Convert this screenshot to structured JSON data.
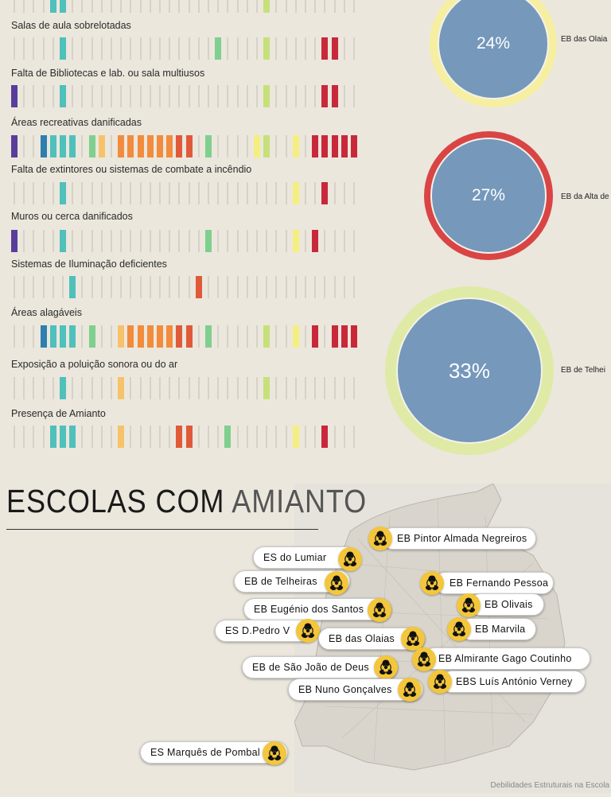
{
  "rows": [
    {
      "label": "",
      "colors": [
        "",
        "",
        "",
        "",
        "#4fc0bb",
        "#4fc0bb",
        "",
        "",
        "",
        "",
        "",
        "",
        "",
        "",
        "",
        "",
        "",
        "",
        "",
        "",
        "",
        "",
        "",
        "",
        "",
        "",
        "#c7e07a",
        "",
        "",
        "",
        "",
        "",
        "",
        "",
        "",
        ""
      ]
    },
    {
      "label": "Salas de aula sobrelotadas",
      "colors": [
        "",
        "",
        "",
        "",
        "",
        "#4fc0bb",
        "",
        "",
        "",
        "",
        "",
        "",
        "",
        "",
        "",
        "",
        "",
        "",
        "",
        "",
        "",
        "#7fcf8e",
        "",
        "",
        "",
        "",
        "#c7e07a",
        "",
        "",
        "",
        "",
        "",
        "#c8283a",
        "#c8283a",
        "",
        ""
      ]
    },
    {
      "label": "Falta de Bibliotecas e lab. ou sala multiusos",
      "colors": [
        "#5a3d9a",
        "",
        "",
        "",
        "",
        "#4fc0bb",
        "",
        "",
        "",
        "",
        "",
        "",
        "",
        "",
        "",
        "",
        "",
        "",
        "",
        "",
        "",
        "",
        "",
        "",
        "",
        "",
        "#c7e07a",
        "",
        "",
        "",
        "",
        "",
        "#c8283a",
        "#c8283a",
        "",
        ""
      ]
    },
    {
      "label": "Áreas recreativas danificadas",
      "colors": [
        "#5a3d9a",
        "",
        "",
        "#2e7fae",
        "#4fc0bb",
        "#4fc0bb",
        "#4fc0bb",
        "",
        "#7fcf8e",
        "#f6c36a",
        "",
        "#f28c3c",
        "#f28c3c",
        "#f28c3c",
        "#f28c3c",
        "#f28c3c",
        "#f28c3c",
        "#e05a3a",
        "#e05a3a",
        "",
        "#7fcf8e",
        "",
        "",
        "",
        "",
        "#f4ef80",
        "#c7e07a",
        "",
        "",
        "#f4ef80",
        "",
        "#c8283a",
        "#c8283a",
        "#c8283a",
        "#c8283a",
        "#c8283a"
      ]
    },
    {
      "label": "Falta de extintores ou sistemas de combate a incêndio",
      "colors": [
        "",
        "",
        "",
        "",
        "",
        "#4fc0bb",
        "",
        "",
        "",
        "",
        "",
        "",
        "",
        "",
        "",
        "",
        "",
        "",
        "",
        "",
        "",
        "",
        "",
        "",
        "",
        "",
        "",
        "",
        "",
        "#f4ef80",
        "",
        "",
        "#c8283a",
        "",
        "",
        ""
      ]
    },
    {
      "label": "Muros ou cerca danificados",
      "colors": [
        "#5a3d9a",
        "",
        "",
        "",
        "",
        "#4fc0bb",
        "",
        "",
        "",
        "",
        "",
        "",
        "",
        "",
        "",
        "",
        "",
        "",
        "",
        "",
        "#7fcf8e",
        "",
        "",
        "",
        "",
        "",
        "",
        "",
        "",
        "#f4ef80",
        "",
        "#c8283a",
        "",
        "",
        "",
        ""
      ]
    },
    {
      "label": "Sistemas de Iluminação deficientes",
      "colors": [
        "",
        "",
        "",
        "",
        "",
        "",
        "#4fc0bb",
        "",
        "",
        "",
        "",
        "",
        "",
        "",
        "",
        "",
        "",
        "",
        "",
        "#e05a3a",
        "",
        "",
        "",
        "",
        "",
        "",
        "",
        "",
        "",
        "",
        "",
        "",
        "",
        "",
        "",
        ""
      ]
    },
    {
      "label": "Áreas alagáveis",
      "colors": [
        "",
        "",
        "",
        "#2e7fae",
        "#4fc0bb",
        "#4fc0bb",
        "#4fc0bb",
        "",
        "#7fcf8e",
        "",
        "",
        "#f6c36a",
        "#f28c3c",
        "#f28c3c",
        "#f28c3c",
        "#f28c3c",
        "#f28c3c",
        "#e05a3a",
        "#e05a3a",
        "",
        "#7fcf8e",
        "",
        "",
        "",
        "",
        "",
        "#c7e07a",
        "",
        "",
        "#f4ef80",
        "",
        "#c8283a",
        "",
        "#c8283a",
        "#c8283a",
        "#c8283a"
      ]
    },
    {
      "label": "Exposição a poluição sonora ou do ar",
      "colors": [
        "",
        "",
        "",
        "",
        "",
        "#4fc0bb",
        "",
        "",
        "",
        "",
        "",
        "#f6c36a",
        "",
        "",
        "",
        "",
        "",
        "",
        "",
        "",
        "",
        "",
        "",
        "",
        "",
        "",
        "#c7e07a",
        "",
        "",
        "",
        "",
        "",
        "",
        "",
        "",
        ""
      ]
    },
    {
      "label": "Presença de Amianto",
      "colors": [
        "",
        "",
        "",
        "",
        "#4fc0bb",
        "#4fc0bb",
        "#4fc0bb",
        "",
        "",
        "",
        "",
        "#f6c36a",
        "",
        "",
        "",
        "",
        "",
        "#e05a3a",
        "#e05a3a",
        "",
        "",
        "",
        "#7fcf8e",
        "",
        "",
        "",
        "",
        "",
        "",
        "#f4ef80",
        "",
        "",
        "#c8283a",
        "",
        "",
        ""
      ]
    }
  ],
  "circles": [
    {
      "value": "24%",
      "fraction": 0.24,
      "label": "EB das Olaia",
      "ring": "#f6efa2"
    },
    {
      "value": "27%",
      "fraction": 0.27,
      "label": "EB da Alta de",
      "ring": "#d94545"
    },
    {
      "value": "33%",
      "fraction": 0.33,
      "label": "EB de Telhei",
      "ring": "#dfeaa6"
    }
  ],
  "section": {
    "title_dark": "ESCOLAS COM ",
    "title_light": "AMIANTO"
  },
  "schools": [
    {
      "name": "EB Pintor Almada Negreiros"
    },
    {
      "name": "ES do Lumiar"
    },
    {
      "name": "EB de Telheiras"
    },
    {
      "name": "EB Fernando Pessoa"
    },
    {
      "name": "EB Olivais"
    },
    {
      "name": "EB Eugénio dos Santos"
    },
    {
      "name": "ES D.Pedro V"
    },
    {
      "name": "EB Marvila"
    },
    {
      "name": "EB das Olaias"
    },
    {
      "name": "EB Almirante Gago Coutinho"
    },
    {
      "name": "EB de São João de Deus"
    },
    {
      "name": "EBS Luís António Verney"
    },
    {
      "name": "EB Nuno Gonçalves"
    },
    {
      "name": "ES Marquês de Pombal"
    }
  ],
  "icons": {
    "hazard": "biohazard-icon"
  },
  "footer": "Debilidades Estruturais na Escola"
}
